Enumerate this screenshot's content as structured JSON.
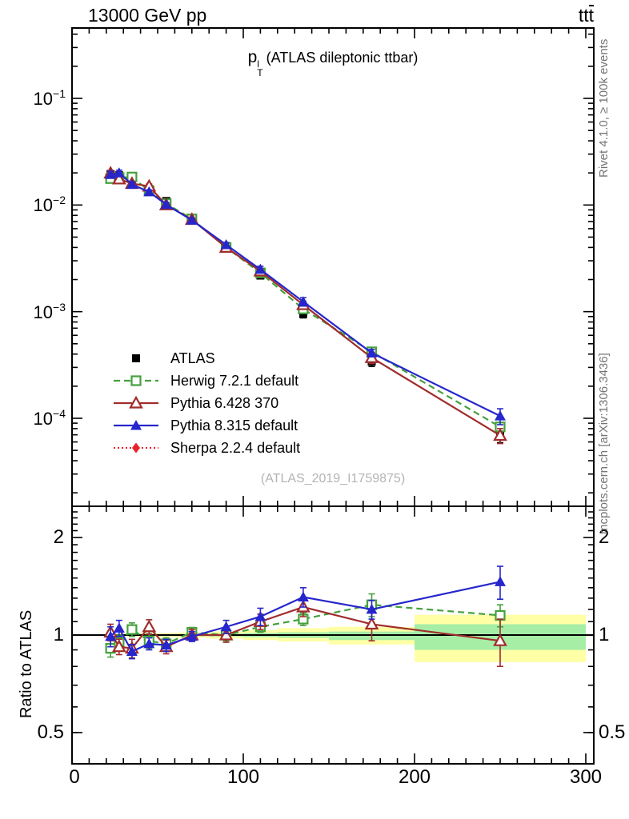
{
  "header": {
    "left": "13000 GeV pp",
    "right_process": "tt"
  },
  "observable_title": {
    "p": "p",
    "sup": "l",
    "sub": "T",
    "rest": "(ATLAS dileptonic ttbar)"
  },
  "watermark": "(ATLAS_2019_I1759875)",
  "side_notes": {
    "top": "Rivet 4.1.0, ≥ 100k events",
    "bottom": "mcplots.cern.ch [arXiv:1306.3436]"
  },
  "colors": {
    "atlas": "#000000",
    "herwig": "#44a13c",
    "pythia6": "#a02c2c",
    "pythia8": "#2626cc",
    "sherpa": "#e8232e",
    "band_yellow": "#ffffa6",
    "band_green": "#a6eda6",
    "frame": "#000000",
    "watermark": "#b4b4b4",
    "side_note": "#757575"
  },
  "legend": [
    {
      "key": "atlas",
      "label": "ATLAS"
    },
    {
      "key": "herwig",
      "label": "Herwig 7.2.1 default"
    },
    {
      "key": "pythia6",
      "label": "Pythia 6.428 370"
    },
    {
      "key": "pythia8",
      "label": "Pythia 8.315 default"
    },
    {
      "key": "sherpa",
      "label": "Sherpa 2.2.4 default"
    }
  ],
  "axes": {
    "x": {
      "ticks": [
        "0",
        "100",
        "200",
        "300"
      ],
      "range": [
        0,
        305
      ]
    },
    "main_y": {
      "log": true,
      "ticks": [
        {
          "base": "10",
          "exp": "−1"
        },
        {
          "base": "10",
          "exp": "−2"
        },
        {
          "base": "10",
          "exp": "−3"
        },
        {
          "base": "10",
          "exp": "−4"
        }
      ]
    },
    "ratio_y": {
      "log": true,
      "label": "Ratio to ATLAS",
      "ticks": [
        "2",
        "1",
        "0.5"
      ],
      "range": [
        0.4,
        2.5
      ]
    }
  },
  "chart_data": [
    {
      "type": "line",
      "panel": "main",
      "title": "p_T^l (ATLAS dileptonic ttbar)",
      "ylog": true,
      "ylim": [
        1.5e-05,
        0.45
      ],
      "xlim": [
        0,
        305
      ],
      "x": [
        22.5,
        27.5,
        35,
        45,
        55,
        70,
        90,
        110,
        135,
        175,
        250
      ],
      "series": [
        {
          "key": "atlas",
          "name": "ATLAS",
          "marker": "square-filled",
          "line": "none",
          "values": [
            0.0195,
            0.019,
            0.0175,
            0.0141,
            0.0109,
            0.0073,
            0.004,
            0.00218,
            0.00095,
            0.00034,
            7.2e-05
          ],
          "yerr_frac": [
            0.04,
            0.04,
            0.03,
            0.03,
            0.03,
            0.03,
            0.04,
            0.05,
            0.08,
            0.1,
            0.18
          ]
        },
        {
          "key": "herwig",
          "name": "Herwig 7.2.1 default",
          "marker": "square-open",
          "line": "dashed",
          "values": [
            0.0177,
            0.0181,
            0.0183,
            0.0136,
            0.0103,
            0.0074,
            0.004,
            0.00231,
            0.00106,
            0.00042,
            8.3e-05
          ],
          "yerr_frac": [
            0.05,
            0.05,
            0.04,
            0.04,
            0.04,
            0.035,
            0.04,
            0.045,
            0.06,
            0.1,
            0.1
          ]
        },
        {
          "key": "pythia6",
          "name": "Pythia 6.428 370",
          "marker": "triangle-open",
          "line": "solid",
          "values": [
            0.0199,
            0.0175,
            0.0159,
            0.015,
            0.01,
            0.0073,
            0.004,
            0.0024,
            0.00116,
            0.00037,
            6.9e-05
          ],
          "yerr_frac": [
            0.06,
            0.05,
            0.05,
            0.05,
            0.045,
            0.04,
            0.05,
            0.06,
            0.08,
            0.12,
            0.16
          ]
        },
        {
          "key": "pythia8",
          "name": "Pythia 8.315 default",
          "marker": "triangle-filled",
          "line": "solid",
          "values": [
            0.0193,
            0.02,
            0.0156,
            0.0133,
            0.0101,
            0.0072,
            0.00424,
            0.00249,
            0.00124,
            0.00041,
            0.000105
          ],
          "yerr_frac": [
            0.07,
            0.06,
            0.045,
            0.04,
            0.04,
            0.035,
            0.05,
            0.07,
            0.09,
            0.08,
            0.17
          ]
        },
        {
          "key": "sherpa",
          "name": "Sherpa 2.2.4 default",
          "marker": "diamond-filled",
          "line": "dotted",
          "values": [],
          "yerr_frac": []
        }
      ]
    },
    {
      "type": "ratio",
      "panel": "ratio",
      "ylabel": "Ratio to ATLAS",
      "ylog": true,
      "ylim": [
        0.4,
        2.5
      ],
      "reference": 1,
      "x": [
        22.5,
        27.5,
        35,
        45,
        55,
        70,
        90,
        110,
        135,
        175,
        250
      ],
      "bands": [
        {
          "x": [
            20,
            25
          ],
          "yellow": [
            0.99,
            1.01
          ],
          "green": [
            0.995,
            1.005
          ]
        },
        {
          "x": [
            25,
            30
          ],
          "yellow": [
            0.99,
            1.01
          ],
          "green": [
            0.995,
            1.005
          ]
        },
        {
          "x": [
            30,
            40
          ],
          "yellow": [
            0.988,
            1.012
          ],
          "green": [
            0.995,
            1.005
          ]
        },
        {
          "x": [
            40,
            50
          ],
          "yellow": [
            0.988,
            1.012
          ],
          "green": [
            0.995,
            1.005
          ]
        },
        {
          "x": [
            50,
            60
          ],
          "yellow": [
            0.985,
            1.015
          ],
          "green": [
            0.993,
            1.007
          ]
        },
        {
          "x": [
            60,
            80
          ],
          "yellow": [
            0.982,
            1.018
          ],
          "green": [
            0.992,
            1.008
          ]
        },
        {
          "x": [
            80,
            100
          ],
          "yellow": [
            0.975,
            1.025
          ],
          "green": [
            0.99,
            1.01
          ]
        },
        {
          "x": [
            100,
            120
          ],
          "yellow": [
            0.965,
            1.035
          ],
          "green": [
            0.985,
            1.015
          ]
        },
        {
          "x": [
            120,
            150
          ],
          "yellow": [
            0.955,
            1.05
          ],
          "green": [
            0.98,
            1.02
          ]
        },
        {
          "x": [
            150,
            200
          ],
          "yellow": [
            0.935,
            1.06
          ],
          "green": [
            0.965,
            1.025
          ]
        },
        {
          "x": [
            200,
            300
          ],
          "yellow": [
            0.825,
            1.155
          ],
          "green": [
            0.9,
            1.08
          ]
        }
      ],
      "series": [
        {
          "key": "herwig",
          "name": "Herwig 7.2.1 default",
          "marker": "square-open",
          "line": "dashed",
          "values": [
            0.91,
            0.95,
            1.04,
            0.96,
            0.94,
            1.02,
            1.0,
            1.06,
            1.12,
            1.24,
            1.15
          ],
          "yerr": [
            0.055,
            0.05,
            0.05,
            0.05,
            0.04,
            0.035,
            0.04,
            0.04,
            0.05,
            0.1,
            0.09
          ]
        },
        {
          "key": "pythia6",
          "name": "Pythia 6.428 370",
          "marker": "triangle-open",
          "line": "solid",
          "values": [
            1.02,
            0.92,
            0.91,
            1.06,
            0.92,
            1.0,
            1.0,
            1.1,
            1.22,
            1.08,
            0.96
          ],
          "yerr": [
            0.06,
            0.05,
            0.06,
            0.055,
            0.045,
            0.04,
            0.05,
            0.06,
            0.08,
            0.12,
            0.16
          ]
        },
        {
          "key": "pythia8",
          "name": "Pythia 8.315 default",
          "marker": "triangle-filled",
          "line": "solid",
          "values": [
            0.99,
            1.05,
            0.89,
            0.94,
            0.93,
            0.99,
            1.06,
            1.14,
            1.31,
            1.2,
            1.46
          ],
          "yerr": [
            0.07,
            0.06,
            0.045,
            0.04,
            0.04,
            0.035,
            0.05,
            0.07,
            0.09,
            0.08,
            0.17
          ]
        }
      ]
    }
  ]
}
